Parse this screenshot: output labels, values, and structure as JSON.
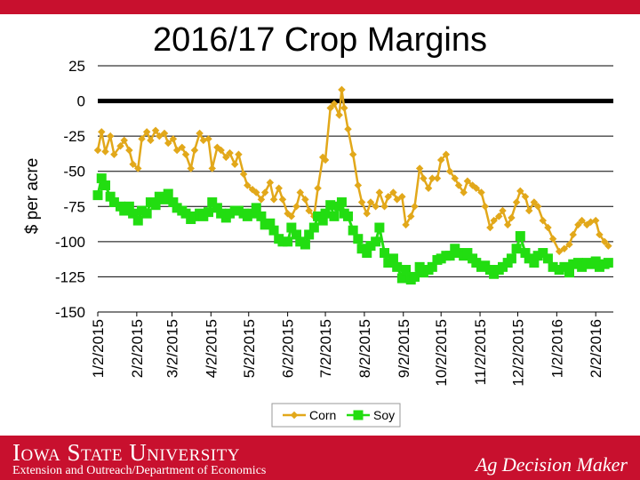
{
  "title": "2016/17 Crop Margins",
  "footer": {
    "university": "Iowa State University",
    "department": "Extension and Outreach/Department of Economics",
    "brand": "Ag Decision Maker"
  },
  "colors": {
    "corn": "#e2a81a",
    "soy": "#22dd11",
    "zero_line": "#000000",
    "brand_red": "#c8102e"
  },
  "chart_data": {
    "type": "line",
    "title": "2016/17 Crop Margins",
    "ylabel": "$ per acre",
    "xlabel": "",
    "ylim": [
      -150,
      25
    ],
    "yticks": [
      25,
      0,
      -25,
      -50,
      -75,
      -100,
      -125,
      -150
    ],
    "xlim": [
      "1/2/2015",
      "2/12/2016"
    ],
    "xticks": [
      "1/2/2015",
      "2/2/2015",
      "3/2/2015",
      "4/2/2015",
      "5/2/2015",
      "6/2/2015",
      "7/2/2015",
      "8/2/2015",
      "9/2/2015",
      "10/2/2015",
      "11/2/2015",
      "12/2/2015",
      "1/2/2016",
      "2/2/2016"
    ],
    "grid": true,
    "legend": "bottom",
    "reference_line": 0,
    "series": [
      {
        "name": "Corn",
        "points": [
          [
            "1/2/2015",
            -35
          ],
          [
            "1/5/2015",
            -22
          ],
          [
            "1/8/2015",
            -36
          ],
          [
            "1/12/2015",
            -25
          ],
          [
            "1/15/2015",
            -38
          ],
          [
            "1/20/2015",
            -32
          ],
          [
            "1/23/2015",
            -28
          ],
          [
            "1/27/2015",
            -35
          ],
          [
            "1/30/2015",
            -45
          ],
          [
            "2/3/2015",
            -48
          ],
          [
            "2/6/2015",
            -27
          ],
          [
            "2/10/2015",
            -22
          ],
          [
            "2/13/2015",
            -28
          ],
          [
            "2/17/2015",
            -21
          ],
          [
            "2/20/2015",
            -25
          ],
          [
            "2/24/2015",
            -23
          ],
          [
            "2/27/2015",
            -30
          ],
          [
            "3/3/2015",
            -27
          ],
          [
            "3/6/2015",
            -35
          ],
          [
            "3/10/2015",
            -33
          ],
          [
            "3/13/2015",
            -38
          ],
          [
            "3/17/2015",
            -48
          ],
          [
            "3/20/2015",
            -35
          ],
          [
            "3/24/2015",
            -23
          ],
          [
            "3/27/2015",
            -28
          ],
          [
            "3/31/2015",
            -27
          ],
          [
            "4/3/2015",
            -48
          ],
          [
            "4/7/2015",
            -33
          ],
          [
            "4/10/2015",
            -35
          ],
          [
            "4/14/2015",
            -40
          ],
          [
            "4/17/2015",
            -37
          ],
          [
            "4/21/2015",
            -45
          ],
          [
            "4/24/2015",
            -38
          ],
          [
            "4/28/2015",
            -52
          ],
          [
            "5/1/2015",
            -60
          ],
          [
            "5/5/2015",
            -63
          ],
          [
            "5/8/2015",
            -65
          ],
          [
            "5/12/2015",
            -70
          ],
          [
            "5/15/2015",
            -65
          ],
          [
            "5/19/2015",
            -58
          ],
          [
            "5/22/2015",
            -70
          ],
          [
            "5/26/2015",
            -62
          ],
          [
            "5/29/2015",
            -70
          ],
          [
            "6/2/2015",
            -80
          ],
          [
            "6/5/2015",
            -82
          ],
          [
            "6/9/2015",
            -75
          ],
          [
            "6/12/2015",
            -65
          ],
          [
            "6/16/2015",
            -70
          ],
          [
            "6/19/2015",
            -78
          ],
          [
            "6/23/2015",
            -82
          ],
          [
            "6/26/2015",
            -62
          ],
          [
            "6/30/2015",
            -40
          ],
          [
            "7/2/2015",
            -42
          ],
          [
            "7/6/2015",
            -5
          ],
          [
            "7/9/2015",
            -2
          ],
          [
            "7/13/2015",
            -10
          ],
          [
            "7/15/2015",
            8
          ],
          [
            "7/17/2015",
            -5
          ],
          [
            "7/20/2015",
            -20
          ],
          [
            "7/24/2015",
            -38
          ],
          [
            "7/28/2015",
            -60
          ],
          [
            "7/31/2015",
            -72
          ],
          [
            "8/4/2015",
            -80
          ],
          [
            "8/7/2015",
            -72
          ],
          [
            "8/11/2015",
            -75
          ],
          [
            "8/14/2015",
            -65
          ],
          [
            "8/18/2015",
            -75
          ],
          [
            "8/21/2015",
            -68
          ],
          [
            "8/25/2015",
            -65
          ],
          [
            "8/28/2015",
            -70
          ],
          [
            "9/1/2015",
            -68
          ],
          [
            "9/4/2015",
            -88
          ],
          [
            "9/8/2015",
            -82
          ],
          [
            "9/11/2015",
            -75
          ],
          [
            "9/15/2015",
            -48
          ],
          [
            "9/18/2015",
            -55
          ],
          [
            "9/22/2015",
            -62
          ],
          [
            "9/25/2015",
            -55
          ],
          [
            "9/29/2015",
            -55
          ],
          [
            "10/2/2015",
            -42
          ],
          [
            "10/6/2015",
            -38
          ],
          [
            "10/9/2015",
            -50
          ],
          [
            "10/13/2015",
            -55
          ],
          [
            "10/16/2015",
            -60
          ],
          [
            "10/20/2015",
            -65
          ],
          [
            "10/23/2015",
            -57
          ],
          [
            "10/27/2015",
            -60
          ],
          [
            "10/30/2015",
            -62
          ],
          [
            "11/3/2015",
            -65
          ],
          [
            "11/6/2015",
            -75
          ],
          [
            "11/10/2015",
            -90
          ],
          [
            "11/13/2015",
            -85
          ],
          [
            "11/17/2015",
            -82
          ],
          [
            "11/20/2015",
            -78
          ],
          [
            "11/24/2015",
            -88
          ],
          [
            "11/27/2015",
            -83
          ],
          [
            "12/1/2015",
            -72
          ],
          [
            "12/4/2015",
            -64
          ],
          [
            "12/8/2015",
            -68
          ],
          [
            "12/11/2015",
            -78
          ],
          [
            "12/15/2015",
            -72
          ],
          [
            "12/18/2015",
            -75
          ],
          [
            "12/22/2015",
            -85
          ],
          [
            "12/26/2015",
            -90
          ],
          [
            "12/30/2015",
            -98
          ],
          [
            "1/4/2016",
            -107
          ],
          [
            "1/8/2016",
            -105
          ],
          [
            "1/12/2016",
            -102
          ],
          [
            "1/15/2016",
            -95
          ],
          [
            "1/19/2016",
            -88
          ],
          [
            "1/22/2016",
            -85
          ],
          [
            "1/26/2016",
            -88
          ],
          [
            "1/29/2016",
            -86
          ],
          [
            "2/2/2016",
            -85
          ],
          [
            "2/5/2016",
            -95
          ],
          [
            "2/9/2016",
            -100
          ],
          [
            "2/12/2016",
            -103
          ]
        ]
      },
      {
        "name": "Soy",
        "points": [
          [
            "1/2/2015",
            -67
          ],
          [
            "1/5/2015",
            -55
          ],
          [
            "1/8/2015",
            -60
          ],
          [
            "1/12/2015",
            -68
          ],
          [
            "1/15/2015",
            -72
          ],
          [
            "1/20/2015",
            -75
          ],
          [
            "1/23/2015",
            -78
          ],
          [
            "1/27/2015",
            -75
          ],
          [
            "1/30/2015",
            -80
          ],
          [
            "2/3/2015",
            -85
          ],
          [
            "2/6/2015",
            -78
          ],
          [
            "2/10/2015",
            -80
          ],
          [
            "2/13/2015",
            -72
          ],
          [
            "2/17/2015",
            -74
          ],
          [
            "2/20/2015",
            -68
          ],
          [
            "2/24/2015",
            -70
          ],
          [
            "2/27/2015",
            -66
          ],
          [
            "3/3/2015",
            -72
          ],
          [
            "3/6/2015",
            -76
          ],
          [
            "3/10/2015",
            -78
          ],
          [
            "3/13/2015",
            -80
          ],
          [
            "3/17/2015",
            -84
          ],
          [
            "3/20/2015",
            -82
          ],
          [
            "3/24/2015",
            -80
          ],
          [
            "3/27/2015",
            -82
          ],
          [
            "3/31/2015",
            -79
          ],
          [
            "4/3/2015",
            -72
          ],
          [
            "4/7/2015",
            -76
          ],
          [
            "4/10/2015",
            -80
          ],
          [
            "4/14/2015",
            -83
          ],
          [
            "4/17/2015",
            -80
          ],
          [
            "4/21/2015",
            -78
          ],
          [
            "4/24/2015",
            -78
          ],
          [
            "4/28/2015",
            -80
          ],
          [
            "5/1/2015",
            -82
          ],
          [
            "5/5/2015",
            -80
          ],
          [
            "5/8/2015",
            -76
          ],
          [
            "5/12/2015",
            -82
          ],
          [
            "5/15/2015",
            -88
          ],
          [
            "5/19/2015",
            -87
          ],
          [
            "5/22/2015",
            -92
          ],
          [
            "5/26/2015",
            -98
          ],
          [
            "5/29/2015",
            -100
          ],
          [
            "6/2/2015",
            -100
          ],
          [
            "6/5/2015",
            -90
          ],
          [
            "6/9/2015",
            -95
          ],
          [
            "6/12/2015",
            -100
          ],
          [
            "6/16/2015",
            -102
          ],
          [
            "6/19/2015",
            -95
          ],
          [
            "6/23/2015",
            -90
          ],
          [
            "6/26/2015",
            -82
          ],
          [
            "6/30/2015",
            -85
          ],
          [
            "7/2/2015",
            -80
          ],
          [
            "7/6/2015",
            -74
          ],
          [
            "7/9/2015",
            -82
          ],
          [
            "7/13/2015",
            -75
          ],
          [
            "7/15/2015",
            -72
          ],
          [
            "7/17/2015",
            -80
          ],
          [
            "7/20/2015",
            -82
          ],
          [
            "7/24/2015",
            -92
          ],
          [
            "7/28/2015",
            -98
          ],
          [
            "7/31/2015",
            -105
          ],
          [
            "8/4/2015",
            -108
          ],
          [
            "8/7/2015",
            -103
          ],
          [
            "8/11/2015",
            -100
          ],
          [
            "8/14/2015",
            -90
          ],
          [
            "8/18/2015",
            -108
          ],
          [
            "8/21/2015",
            -115
          ],
          [
            "8/25/2015",
            -112
          ],
          [
            "8/28/2015",
            -118
          ],
          [
            "9/1/2015",
            -126
          ],
          [
            "9/4/2015",
            -120
          ],
          [
            "9/8/2015",
            -127
          ],
          [
            "9/11/2015",
            -125
          ],
          [
            "9/15/2015",
            -118
          ],
          [
            "9/18/2015",
            -122
          ],
          [
            "9/22/2015",
            -120
          ],
          [
            "9/25/2015",
            -118
          ],
          [
            "9/29/2015",
            -113
          ],
          [
            "10/2/2015",
            -112
          ],
          [
            "10/6/2015",
            -110
          ],
          [
            "10/9/2015",
            -110
          ],
          [
            "10/13/2015",
            -105
          ],
          [
            "10/16/2015",
            -108
          ],
          [
            "10/20/2015",
            -110
          ],
          [
            "10/23/2015",
            -108
          ],
          [
            "10/27/2015",
            -112
          ],
          [
            "10/30/2015",
            -115
          ],
          [
            "11/3/2015",
            -118
          ],
          [
            "11/6/2015",
            -117
          ],
          [
            "11/10/2015",
            -120
          ],
          [
            "11/13/2015",
            -123
          ],
          [
            "11/17/2015",
            -120
          ],
          [
            "11/20/2015",
            -118
          ],
          [
            "11/24/2015",
            -115
          ],
          [
            "11/27/2015",
            -112
          ],
          [
            "12/1/2015",
            -105
          ],
          [
            "12/4/2015",
            -96
          ],
          [
            "12/8/2015",
            -108
          ],
          [
            "12/11/2015",
            -112
          ],
          [
            "12/15/2015",
            -115
          ],
          [
            "12/18/2015",
            -110
          ],
          [
            "12/22/2015",
            -108
          ],
          [
            "12/26/2015",
            -112
          ],
          [
            "12/30/2015",
            -118
          ],
          [
            "1/4/2016",
            -120
          ],
          [
            "1/8/2016",
            -118
          ],
          [
            "1/12/2016",
            -122
          ],
          [
            "1/15/2016",
            -116
          ],
          [
            "1/19/2016",
            -115
          ],
          [
            "1/22/2016",
            -118
          ],
          [
            "1/26/2016",
            -115
          ],
          [
            "1/29/2016",
            -116
          ],
          [
            "2/2/2016",
            -114
          ],
          [
            "2/5/2016",
            -118
          ],
          [
            "2/9/2016",
            -116
          ],
          [
            "2/12/2016",
            -115
          ]
        ]
      }
    ]
  }
}
